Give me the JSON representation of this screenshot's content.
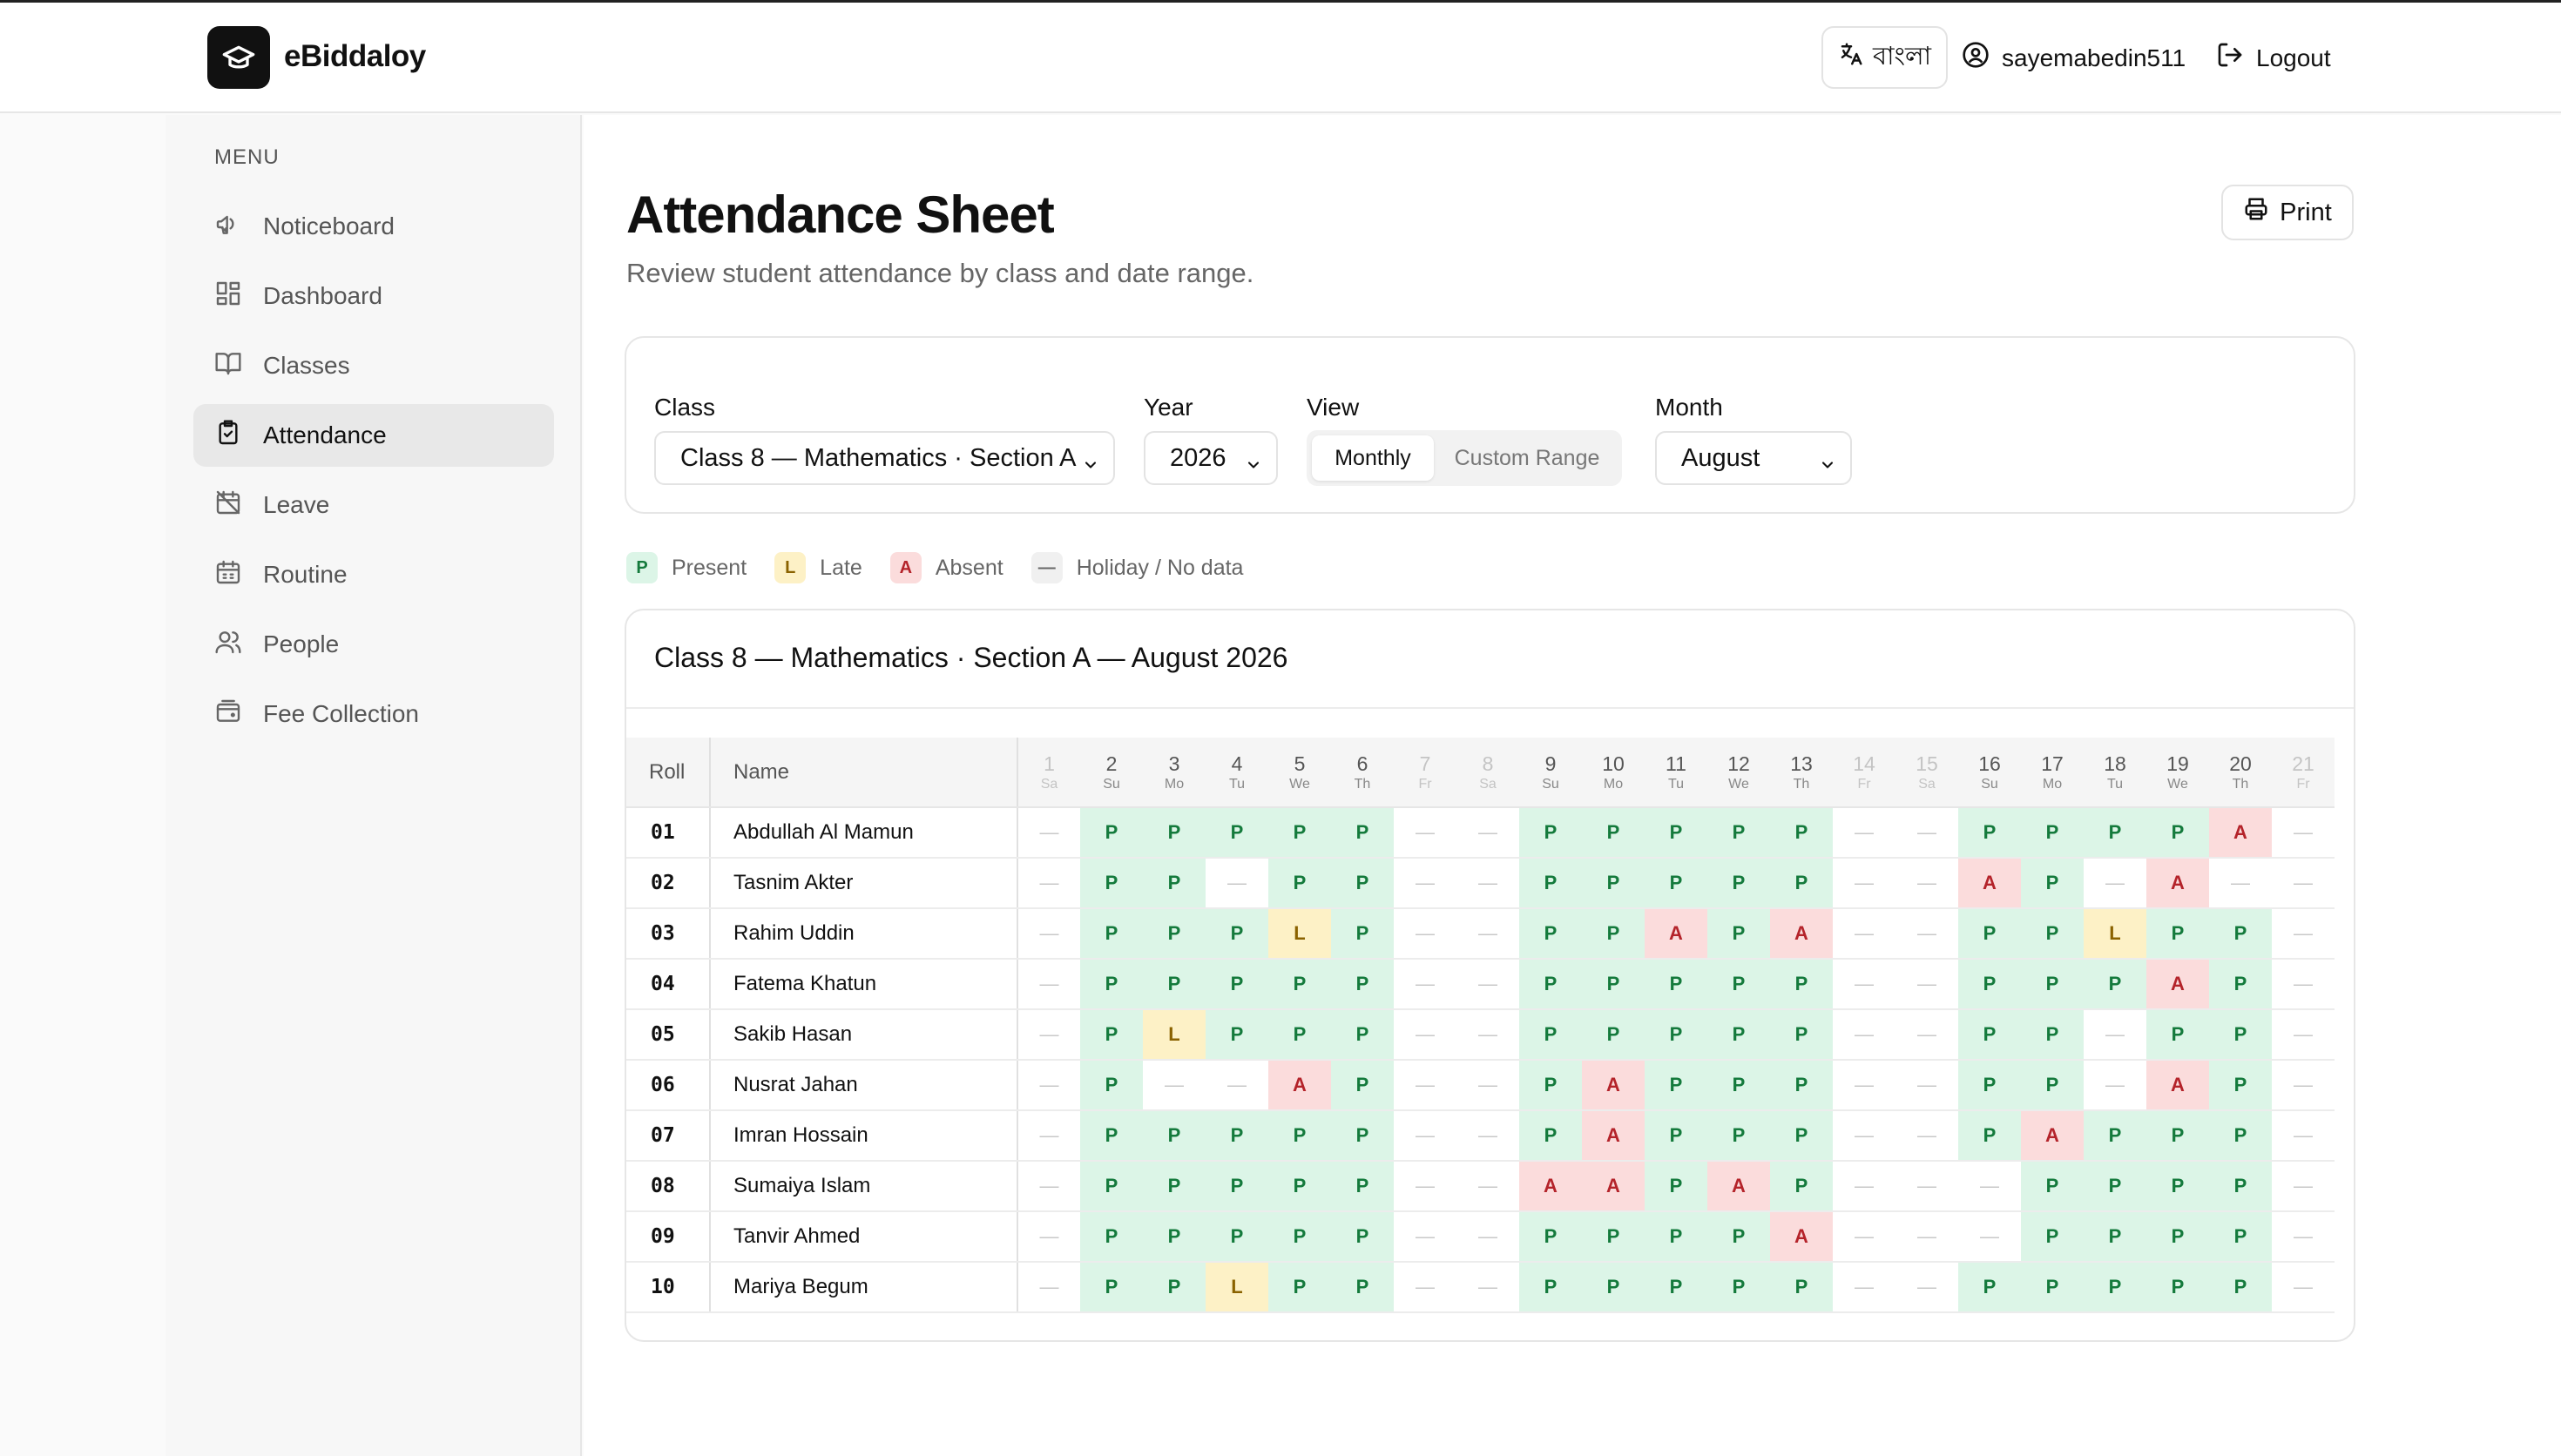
{
  "header": {
    "brand": "eBiddaloy",
    "language_label": "বাংলা",
    "username": "sayemabedin511",
    "logout_label": "Logout"
  },
  "sidebar": {
    "menu_label": "MENU",
    "items": [
      {
        "label": "Noticeboard",
        "icon": "megaphone-icon",
        "active": false
      },
      {
        "label": "Dashboard",
        "icon": "dashboard-icon",
        "active": false
      },
      {
        "label": "Classes",
        "icon": "book-icon",
        "active": false
      },
      {
        "label": "Attendance",
        "icon": "clipboard-check-icon",
        "active": true
      },
      {
        "label": "Leave",
        "icon": "calendar-off-icon",
        "active": false
      },
      {
        "label": "Routine",
        "icon": "calendar-icon",
        "active": false
      },
      {
        "label": "People",
        "icon": "users-icon",
        "active": false
      },
      {
        "label": "Fee Collection",
        "icon": "wallet-icon",
        "active": false
      }
    ]
  },
  "page": {
    "title": "Attendance Sheet",
    "subtitle": "Review student attendance by class and date range.",
    "print_label": "Print"
  },
  "filters": {
    "class_label": "Class",
    "class_value": "Class 8 — Mathematics · Section A",
    "year_label": "Year",
    "year_value": "2026",
    "view_label": "View",
    "view_monthly": "Monthly",
    "view_custom": "Custom Range",
    "month_label": "Month",
    "month_value": "August"
  },
  "legend": {
    "present_code": "P",
    "present": "Present",
    "late_code": "L",
    "late": "Late",
    "absent_code": "A",
    "absent": "Absent",
    "holiday_code": "—",
    "holiday": "Holiday / No data"
  },
  "sheet": {
    "title": "Class 8 — Mathematics · Section A — August 2026",
    "roll_header": "Roll",
    "name_header": "Name",
    "days": [
      {
        "d": "1",
        "w": "Sa",
        "off": true
      },
      {
        "d": "2",
        "w": "Su",
        "off": false
      },
      {
        "d": "3",
        "w": "Mo",
        "off": false
      },
      {
        "d": "4",
        "w": "Tu",
        "off": false
      },
      {
        "d": "5",
        "w": "We",
        "off": false
      },
      {
        "d": "6",
        "w": "Th",
        "off": false
      },
      {
        "d": "7",
        "w": "Fr",
        "off": true
      },
      {
        "d": "8",
        "w": "Sa",
        "off": true
      },
      {
        "d": "9",
        "w": "Su",
        "off": false
      },
      {
        "d": "10",
        "w": "Mo",
        "off": false
      },
      {
        "d": "11",
        "w": "Tu",
        "off": false
      },
      {
        "d": "12",
        "w": "We",
        "off": false
      },
      {
        "d": "13",
        "w": "Th",
        "off": false
      },
      {
        "d": "14",
        "w": "Fr",
        "off": true
      },
      {
        "d": "15",
        "w": "Sa",
        "off": true
      },
      {
        "d": "16",
        "w": "Su",
        "off": false
      },
      {
        "d": "17",
        "w": "Mo",
        "off": false
      },
      {
        "d": "18",
        "w": "Tu",
        "off": false
      },
      {
        "d": "19",
        "w": "We",
        "off": false
      },
      {
        "d": "20",
        "w": "Th",
        "off": false
      },
      {
        "d": "21",
        "w": "Fr",
        "off": true
      }
    ],
    "students": [
      {
        "roll": "01",
        "name": "Abdullah Al Mamun",
        "marks": [
          "—",
          "P",
          "P",
          "P",
          "P",
          "P",
          "—",
          "—",
          "P",
          "P",
          "P",
          "P",
          "P",
          "—",
          "—",
          "P",
          "P",
          "P",
          "P",
          "A",
          "—"
        ]
      },
      {
        "roll": "02",
        "name": "Tasnim Akter",
        "marks": [
          "—",
          "P",
          "P",
          "—",
          "P",
          "P",
          "—",
          "—",
          "P",
          "P",
          "P",
          "P",
          "P",
          "—",
          "—",
          "A",
          "P",
          "—",
          "A",
          "—",
          "—"
        ]
      },
      {
        "roll": "03",
        "name": "Rahim Uddin",
        "marks": [
          "—",
          "P",
          "P",
          "P",
          "L",
          "P",
          "—",
          "—",
          "P",
          "P",
          "A",
          "P",
          "A",
          "—",
          "—",
          "P",
          "P",
          "L",
          "P",
          "P",
          "—"
        ]
      },
      {
        "roll": "04",
        "name": "Fatema Khatun",
        "marks": [
          "—",
          "P",
          "P",
          "P",
          "P",
          "P",
          "—",
          "—",
          "P",
          "P",
          "P",
          "P",
          "P",
          "—",
          "—",
          "P",
          "P",
          "P",
          "A",
          "P",
          "—"
        ]
      },
      {
        "roll": "05",
        "name": "Sakib Hasan",
        "marks": [
          "—",
          "P",
          "L",
          "P",
          "P",
          "P",
          "—",
          "—",
          "P",
          "P",
          "P",
          "P",
          "P",
          "—",
          "—",
          "P",
          "P",
          "—",
          "P",
          "P",
          "—"
        ]
      },
      {
        "roll": "06",
        "name": "Nusrat Jahan",
        "marks": [
          "—",
          "P",
          "—",
          "—",
          "A",
          "P",
          "—",
          "—",
          "P",
          "A",
          "P",
          "P",
          "P",
          "—",
          "—",
          "P",
          "P",
          "—",
          "A",
          "P",
          "—"
        ]
      },
      {
        "roll": "07",
        "name": "Imran Hossain",
        "marks": [
          "—",
          "P",
          "P",
          "P",
          "P",
          "P",
          "—",
          "—",
          "P",
          "A",
          "P",
          "P",
          "P",
          "—",
          "—",
          "P",
          "A",
          "P",
          "P",
          "P",
          "—"
        ]
      },
      {
        "roll": "08",
        "name": "Sumaiya Islam",
        "marks": [
          "—",
          "P",
          "P",
          "P",
          "P",
          "P",
          "—",
          "—",
          "A",
          "A",
          "P",
          "A",
          "P",
          "—",
          "—",
          "—",
          "P",
          "P",
          "P",
          "P",
          "—"
        ]
      },
      {
        "roll": "09",
        "name": "Tanvir Ahmed",
        "marks": [
          "—",
          "P",
          "P",
          "P",
          "P",
          "P",
          "—",
          "—",
          "P",
          "P",
          "P",
          "P",
          "A",
          "—",
          "—",
          "—",
          "P",
          "P",
          "P",
          "P",
          "—"
        ]
      },
      {
        "roll": "10",
        "name": "Mariya Begum",
        "marks": [
          "—",
          "P",
          "P",
          "L",
          "P",
          "P",
          "—",
          "—",
          "P",
          "P",
          "P",
          "P",
          "P",
          "—",
          "—",
          "P",
          "P",
          "P",
          "P",
          "P",
          "—"
        ]
      }
    ]
  }
}
